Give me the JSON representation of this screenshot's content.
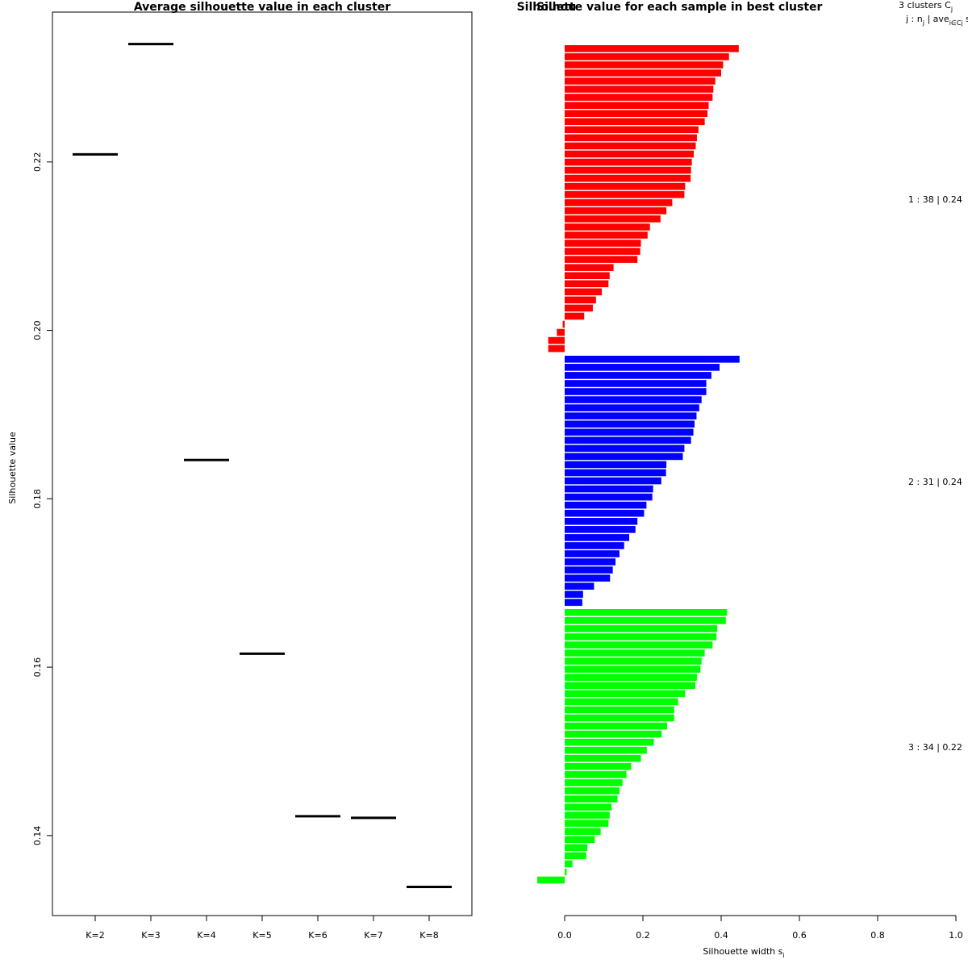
{
  "chart_data": [
    {
      "type": "scatter",
      "marker": "horizontal-segment",
      "title": "Average silhouette value in each cluster",
      "xlabel": "",
      "ylabel": "Silhouette value",
      "categories": [
        "K=2",
        "K=3",
        "K=4",
        "K=5",
        "K=6",
        "K=7",
        "K=8"
      ],
      "values": [
        0.2209,
        0.234,
        0.1846,
        0.1616,
        0.1423,
        0.1421,
        0.1339
      ],
      "ylim": [
        0.1305,
        0.2378
      ],
      "yticks": [
        0.14,
        0.16,
        0.18,
        0.2,
        0.22
      ],
      "ytick_labels": [
        "0.14",
        "0.16",
        "0.18",
        "0.20",
        "0.22"
      ],
      "grid": false,
      "color": "#000000"
    },
    {
      "type": "bar",
      "orientation": "horizontal",
      "title": "Silhouette value for each sample in best cluster",
      "overprinted_text": "Silhou",
      "xlabel": "Silhouette width s",
      "xlabel_subscript": "i",
      "xlim": [
        0,
        1
      ],
      "xticks": [
        0.0,
        0.2,
        0.4,
        0.6,
        0.8,
        1.0
      ],
      "xtick_labels": [
        "0.0",
        "0.2",
        "0.4",
        "0.6",
        "0.8",
        "1.0"
      ],
      "legend_header": {
        "line1": "3  clusters  C",
        "line1_sub": "j",
        "line2_a": "j :  n",
        "line2_sub_a": "j",
        "line2_b": " | ave",
        "line2_sub_b": "i∈Cj",
        "line2_c": "  s"
      },
      "clusters": [
        {
          "label": "1 :   38  |  0.24",
          "color": "#ff0000",
          "n": 38,
          "avg": 0.24,
          "values": [
            0.445,
            0.42,
            0.405,
            0.4,
            0.385,
            0.38,
            0.378,
            0.368,
            0.365,
            0.358,
            0.342,
            0.338,
            0.335,
            0.33,
            0.325,
            0.323,
            0.322,
            0.308,
            0.306,
            0.275,
            0.26,
            0.245,
            0.218,
            0.212,
            0.195,
            0.193,
            0.186,
            0.125,
            0.115,
            0.112,
            0.095,
            0.08,
            0.072,
            0.05,
            -0.005,
            -0.02,
            -0.042,
            -0.042
          ]
        },
        {
          "label": "2 :   31  |  0.24",
          "color": "#0000ff",
          "n": 31,
          "avg": 0.24,
          "values": [
            0.447,
            0.396,
            0.375,
            0.362,
            0.362,
            0.35,
            0.344,
            0.337,
            0.332,
            0.329,
            0.323,
            0.306,
            0.302,
            0.26,
            0.259,
            0.247,
            0.226,
            0.224,
            0.209,
            0.203,
            0.186,
            0.181,
            0.165,
            0.152,
            0.14,
            0.13,
            0.123,
            0.116,
            0.075,
            0.047,
            0.045
          ]
        },
        {
          "label": "3 :   34  |  0.22",
          "color": "#00ff00",
          "n": 34,
          "avg": 0.22,
          "values": [
            0.415,
            0.412,
            0.39,
            0.388,
            0.378,
            0.358,
            0.35,
            0.347,
            0.338,
            0.334,
            0.308,
            0.29,
            0.28,
            0.28,
            0.262,
            0.248,
            0.228,
            0.21,
            0.195,
            0.17,
            0.158,
            0.148,
            0.14,
            0.135,
            0.12,
            0.115,
            0.112,
            0.092,
            0.077,
            0.058,
            0.055,
            0.02,
            0.005,
            -0.07
          ]
        }
      ]
    }
  ]
}
